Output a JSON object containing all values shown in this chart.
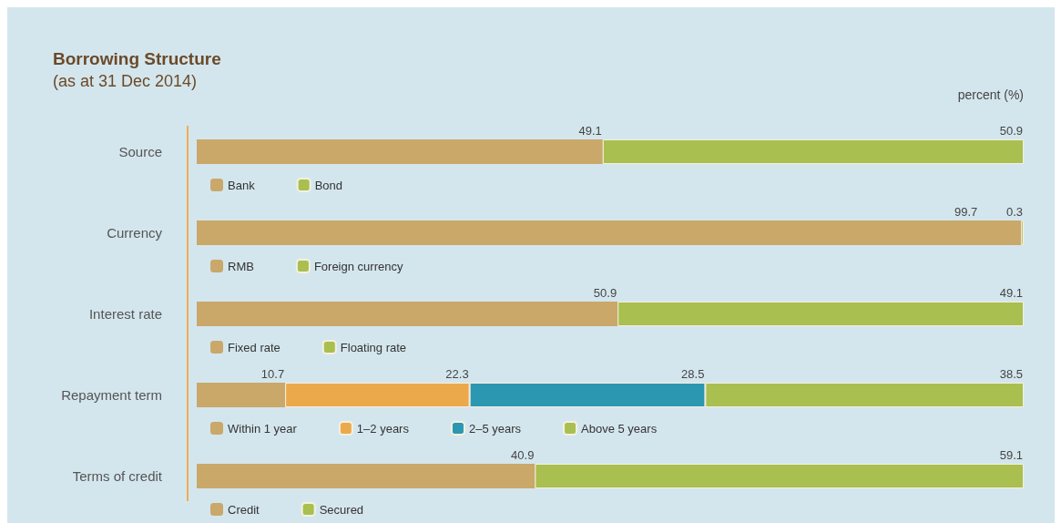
{
  "chart_data": [
    {
      "type": "bar",
      "orientation": "horizontal",
      "stacked": true,
      "title": "Borrowing Structure",
      "subtitle": "(as at 31 Dec 2014)",
      "annotations": [
        "percent (%)"
      ],
      "categories": [
        "Source"
      ],
      "xlim": [
        0,
        100
      ],
      "tick_labels": false,
      "data_labels": true,
      "legend": "bottom",
      "series": [
        {
          "name": "Bank",
          "color": "#c9a86a",
          "values": [
            49.1
          ]
        },
        {
          "name": "Bond",
          "color": "#a9bf4f",
          "values": [
            50.9
          ]
        }
      ]
    },
    {
      "type": "bar",
      "orientation": "horizontal",
      "stacked": true,
      "categories": [
        "Currency"
      ],
      "xlim": [
        0,
        100
      ],
      "tick_labels": false,
      "data_labels": true,
      "legend": "bottom",
      "series": [
        {
          "name": "RMB",
          "color": "#c9a86a",
          "values": [
            99.7
          ]
        },
        {
          "name": "Foreign currency",
          "color": "#a9bf4f",
          "values": [
            0.3
          ]
        }
      ]
    },
    {
      "type": "bar",
      "orientation": "horizontal",
      "stacked": true,
      "categories": [
        "Interest rate"
      ],
      "xlim": [
        0,
        100
      ],
      "tick_labels": false,
      "data_labels": true,
      "legend": "bottom",
      "series": [
        {
          "name": "Fixed rate",
          "color": "#c9a86a",
          "values": [
            50.9
          ]
        },
        {
          "name": "Floating rate",
          "color": "#a9bf4f",
          "values": [
            49.1
          ]
        }
      ]
    },
    {
      "type": "bar",
      "orientation": "horizontal",
      "stacked": true,
      "categories": [
        "Repayment term"
      ],
      "xlim": [
        0,
        100
      ],
      "tick_labels": false,
      "data_labels": true,
      "legend": "bottom",
      "series": [
        {
          "name": "Within 1 year",
          "color": "#c9a86a",
          "values": [
            10.7
          ]
        },
        {
          "name": "1–2 years",
          "color": "#eca94c",
          "values": [
            22.3
          ]
        },
        {
          "name": "2–5 years",
          "color": "#2b97b1",
          "values": [
            28.5
          ]
        },
        {
          "name": "Above 5 years",
          "color": "#a9bf4f",
          "values": [
            38.5
          ]
        }
      ]
    },
    {
      "type": "bar",
      "orientation": "horizontal",
      "stacked": true,
      "categories": [
        "Terms of credit"
      ],
      "xlim": [
        0,
        100
      ],
      "tick_labels": false,
      "data_labels": true,
      "legend": "bottom",
      "series": [
        {
          "name": "Credit",
          "color": "#c9a86a",
          "values": [
            40.9
          ]
        },
        {
          "name": "Secured",
          "color": "#a9bf4f",
          "values": [
            59.1
          ]
        }
      ]
    }
  ]
}
